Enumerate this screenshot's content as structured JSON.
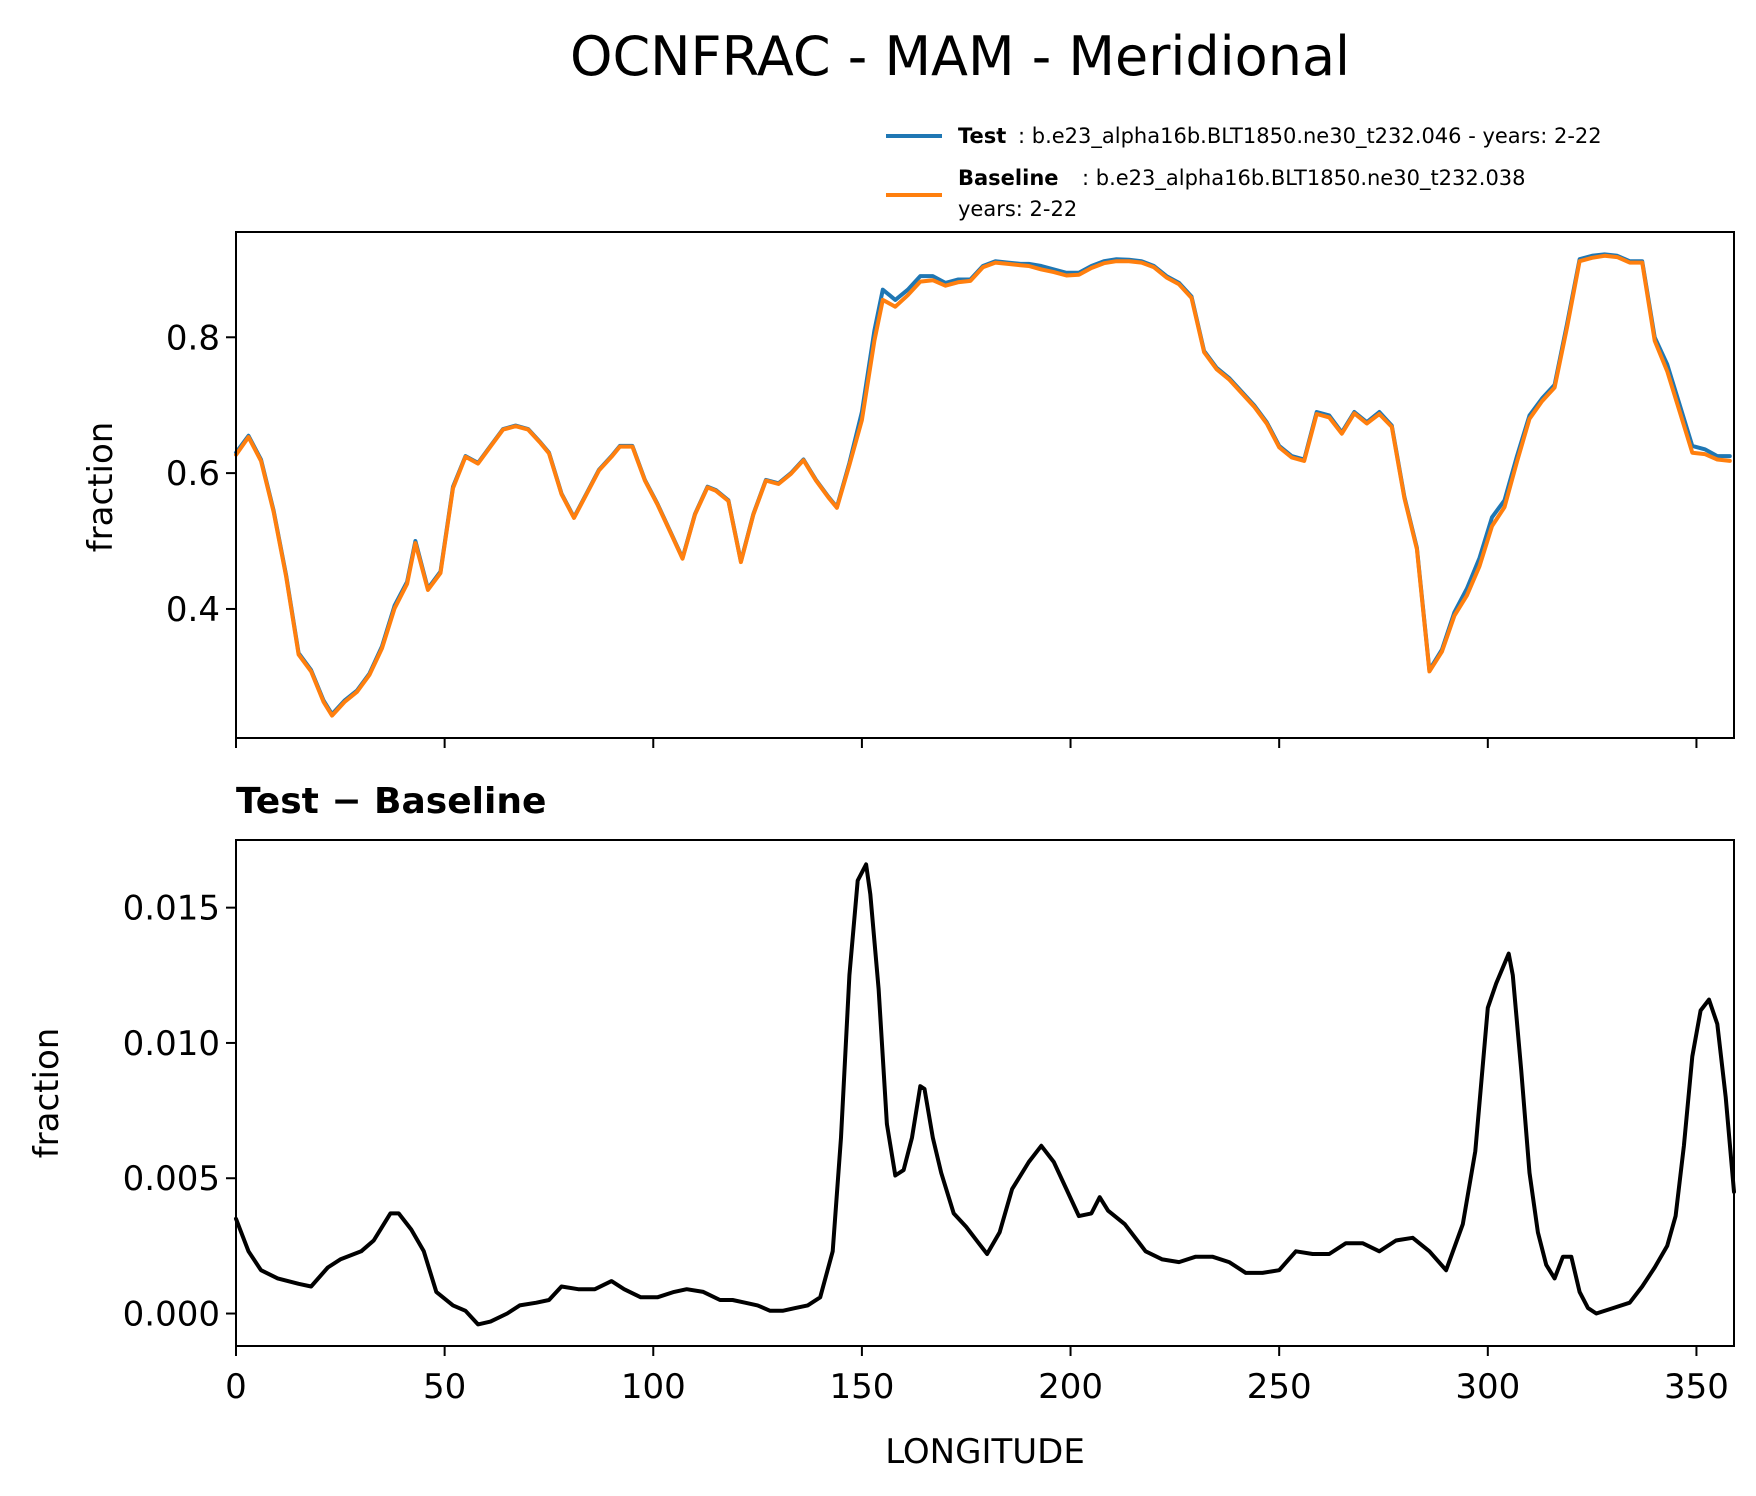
{
  "chart_data": [
    {
      "type": "line",
      "title": "OCNFRAC - MAM - Meridional",
      "xlabel": "",
      "ylabel": "fraction",
      "xlim": [
        0,
        359
      ],
      "ylim": [
        0.21,
        0.955
      ],
      "yticks": [
        0.4,
        0.6,
        0.8
      ],
      "ytick_labels": [
        "0.4",
        "0.6",
        "0.8"
      ],
      "xticks": [
        0,
        50,
        100,
        150,
        200,
        250,
        300,
        350
      ],
      "legend": {
        "position": "top-right",
        "entries": [
          {
            "name": "Test",
            "text": ": b.e23_alpha16b.BLT1850.ne30_t232.046 - years: 2-22",
            "color": "#1f77b4"
          },
          {
            "name": "Baseline",
            "text": ": b.e23_alpha16b.BLT1850.ne30_t232.038",
            "text2": "years: 2-22",
            "color": "#ff7f0e"
          }
        ]
      },
      "series": [
        {
          "name": "Test",
          "color": "#1f77b4",
          "x": [
            0,
            3,
            6,
            9,
            12,
            15,
            18,
            21,
            23,
            26,
            29,
            32,
            35,
            38,
            41,
            43,
            46,
            49,
            52,
            55,
            58,
            61,
            64,
            67,
            70,
            73,
            75,
            78,
            81,
            84,
            87,
            90,
            92,
            95,
            98,
            101,
            104,
            107,
            110,
            113,
            115,
            118,
            121,
            124,
            127,
            130,
            133,
            136,
            139,
            142,
            144,
            147,
            150,
            153,
            155,
            158,
            161,
            164,
            167,
            170,
            173,
            176,
            179,
            182,
            185,
            188,
            190,
            193,
            196,
            199,
            202,
            205,
            208,
            211,
            214,
            217,
            220,
            223,
            226,
            229,
            232,
            235,
            238,
            241,
            244,
            247,
            250,
            253,
            256,
            259,
            262,
            265,
            268,
            271,
            274,
            277,
            280,
            283,
            286,
            289,
            292,
            295,
            298,
            301,
            304,
            307,
            310,
            313,
            316,
            319,
            322,
            325,
            328,
            331,
            334,
            337,
            340,
            343,
            346,
            349,
            352,
            355,
            358
          ],
          "values": [
            0.63,
            0.655,
            0.62,
            0.545,
            0.45,
            0.335,
            0.31,
            0.265,
            0.245,
            0.265,
            0.28,
            0.305,
            0.345,
            0.405,
            0.44,
            0.5,
            0.43,
            0.455,
            0.58,
            0.625,
            0.615,
            0.64,
            0.665,
            0.67,
            0.665,
            0.645,
            0.63,
            0.57,
            0.535,
            0.57,
            0.605,
            0.625,
            0.64,
            0.64,
            0.59,
            0.555,
            0.515,
            0.475,
            0.54,
            0.58,
            0.575,
            0.56,
            0.47,
            0.54,
            0.59,
            0.585,
            0.6,
            0.62,
            0.59,
            0.565,
            0.55,
            0.615,
            0.69,
            0.81,
            0.87,
            0.855,
            0.87,
            0.89,
            0.89,
            0.88,
            0.885,
            0.885,
            0.905,
            0.912,
            0.91,
            0.908,
            0.908,
            0.905,
            0.9,
            0.895,
            0.895,
            0.905,
            0.912,
            0.915,
            0.914,
            0.912,
            0.905,
            0.89,
            0.88,
            0.86,
            0.78,
            0.755,
            0.74,
            0.72,
            0.7,
            0.675,
            0.64,
            0.625,
            0.62,
            0.69,
            0.685,
            0.66,
            0.69,
            0.675,
            0.69,
            0.67,
            0.565,
            0.49,
            0.31,
            0.34,
            0.395,
            0.43,
            0.475,
            0.535,
            0.56,
            0.625,
            0.685,
            0.71,
            0.73,
            0.82,
            0.915,
            0.92,
            0.922,
            0.92,
            0.912,
            0.912,
            0.8,
            0.76,
            0.7,
            0.64,
            0.635,
            0.625,
            0.625
          ]
        },
        {
          "name": "Baseline",
          "color": "#ff7f0e",
          "x": [
            0,
            3,
            6,
            9,
            12,
            15,
            18,
            21,
            23,
            26,
            29,
            32,
            35,
            38,
            41,
            43,
            46,
            49,
            52,
            55,
            58,
            61,
            64,
            67,
            70,
            73,
            75,
            78,
            81,
            84,
            87,
            90,
            92,
            95,
            98,
            101,
            104,
            107,
            110,
            113,
            115,
            118,
            121,
            124,
            127,
            130,
            133,
            136,
            139,
            142,
            144,
            147,
            150,
            153,
            155,
            158,
            161,
            164,
            167,
            170,
            173,
            176,
            179,
            182,
            185,
            188,
            190,
            193,
            196,
            199,
            202,
            205,
            208,
            211,
            214,
            217,
            220,
            223,
            226,
            229,
            232,
            235,
            238,
            241,
            244,
            247,
            250,
            253,
            256,
            259,
            262,
            265,
            268,
            271,
            274,
            277,
            280,
            283,
            286,
            289,
            292,
            295,
            298,
            301,
            304,
            307,
            310,
            313,
            316,
            319,
            322,
            325,
            328,
            331,
            334,
            337,
            340,
            343,
            346,
            349,
            352,
            355,
            358
          ],
          "values": [
            0.627,
            0.653,
            0.618,
            0.543,
            0.448,
            0.333,
            0.308,
            0.263,
            0.243,
            0.263,
            0.278,
            0.303,
            0.342,
            0.401,
            0.437,
            0.497,
            0.428,
            0.453,
            0.578,
            0.624,
            0.614,
            0.639,
            0.664,
            0.669,
            0.664,
            0.644,
            0.629,
            0.569,
            0.534,
            0.569,
            0.604,
            0.624,
            0.639,
            0.639,
            0.589,
            0.554,
            0.514,
            0.474,
            0.539,
            0.579,
            0.574,
            0.559,
            0.469,
            0.539,
            0.589,
            0.584,
            0.599,
            0.619,
            0.589,
            0.564,
            0.549,
            0.612,
            0.678,
            0.795,
            0.855,
            0.845,
            0.862,
            0.882,
            0.884,
            0.876,
            0.881,
            0.883,
            0.903,
            0.91,
            0.908,
            0.906,
            0.905,
            0.9,
            0.896,
            0.891,
            0.892,
            0.902,
            0.909,
            0.912,
            0.912,
            0.91,
            0.903,
            0.888,
            0.878,
            0.858,
            0.778,
            0.753,
            0.738,
            0.718,
            0.698,
            0.673,
            0.638,
            0.623,
            0.618,
            0.687,
            0.682,
            0.658,
            0.688,
            0.673,
            0.687,
            0.668,
            0.563,
            0.488,
            0.308,
            0.337,
            0.39,
            0.42,
            0.463,
            0.522,
            0.55,
            0.617,
            0.68,
            0.706,
            0.726,
            0.815,
            0.912,
            0.917,
            0.92,
            0.918,
            0.91,
            0.91,
            0.795,
            0.75,
            0.69,
            0.63,
            0.628,
            0.62,
            0.618
          ]
        }
      ]
    },
    {
      "type": "line",
      "title": "Test − Baseline",
      "xlabel": "LONGITUDE",
      "ylabel": "fraction",
      "xlim": [
        0,
        359
      ],
      "ylim": [
        -0.0012,
        0.0175
      ],
      "yticks": [
        0.0,
        0.005,
        0.01,
        0.015
      ],
      "ytick_labels": [
        "0.000",
        "0.005",
        "0.010",
        "0.015"
      ],
      "xticks": [
        0,
        50,
        100,
        150,
        200,
        250,
        300,
        350
      ],
      "xtick_labels": [
        "0",
        "50",
        "100",
        "150",
        "200",
        "250",
        "300",
        "350"
      ],
      "series": [
        {
          "name": "Test − Baseline",
          "color": "#000000",
          "x": [
            0,
            3,
            6,
            10,
            15,
            18,
            22,
            25,
            30,
            33,
            37,
            39,
            42,
            45,
            48,
            52,
            55,
            58,
            61,
            65,
            68,
            72,
            75,
            78,
            82,
            86,
            90,
            93,
            97,
            101,
            105,
            108,
            112,
            116,
            119,
            122,
            125,
            128,
            131,
            134,
            137,
            140,
            143,
            145,
            147,
            149,
            151,
            152,
            154,
            156,
            158,
            160,
            162,
            164,
            165,
            167,
            169,
            172,
            175,
            178,
            180,
            183,
            186,
            190,
            193,
            196,
            199,
            202,
            205,
            207,
            209,
            213,
            218,
            222,
            226,
            230,
            234,
            238,
            242,
            246,
            250,
            254,
            258,
            262,
            266,
            270,
            274,
            278,
            282,
            286,
            290,
            294,
            297,
            300,
            302,
            305,
            306,
            308,
            310,
            312,
            314,
            316,
            318,
            320,
            322,
            324,
            326,
            330,
            334,
            337,
            340,
            343,
            345,
            347,
            349,
            351,
            353,
            355,
            357,
            359
          ],
          "values": [
            0.0035,
            0.0023,
            0.0016,
            0.0013,
            0.0011,
            0.001,
            0.0017,
            0.002,
            0.0023,
            0.0027,
            0.0037,
            0.0037,
            0.0031,
            0.0023,
            0.0008,
            0.0003,
            0.0001,
            -0.0004,
            -0.0003,
            0.0,
            0.0003,
            0.0004,
            0.0005,
            0.001,
            0.0009,
            0.0009,
            0.0012,
            0.0009,
            0.0006,
            0.0006,
            0.0008,
            0.0009,
            0.0008,
            0.0005,
            0.0005,
            0.0004,
            0.0003,
            0.0001,
            0.0001,
            0.0002,
            0.0003,
            0.0006,
            0.0023,
            0.0065,
            0.0125,
            0.016,
            0.0166,
            0.0155,
            0.012,
            0.007,
            0.0051,
            0.0053,
            0.0065,
            0.0084,
            0.0083,
            0.0065,
            0.0052,
            0.0037,
            0.0032,
            0.0026,
            0.0022,
            0.003,
            0.0046,
            0.0056,
            0.0062,
            0.0056,
            0.0046,
            0.0036,
            0.0037,
            0.0043,
            0.0038,
            0.0033,
            0.0023,
            0.002,
            0.0019,
            0.0021,
            0.0021,
            0.0019,
            0.0015,
            0.0015,
            0.0016,
            0.0023,
            0.0022,
            0.0022,
            0.0026,
            0.0026,
            0.0023,
            0.0027,
            0.0028,
            0.0023,
            0.0016,
            0.0033,
            0.006,
            0.0113,
            0.0122,
            0.0133,
            0.0125,
            0.009,
            0.0052,
            0.003,
            0.0018,
            0.0013,
            0.0021,
            0.0021,
            0.0008,
            0.0002,
            0.0,
            0.0002,
            0.0004,
            0.001,
            0.0017,
            0.0025,
            0.0036,
            0.0062,
            0.0095,
            0.0112,
            0.0116,
            0.0107,
            0.008,
            0.0045
          ]
        }
      ]
    }
  ]
}
